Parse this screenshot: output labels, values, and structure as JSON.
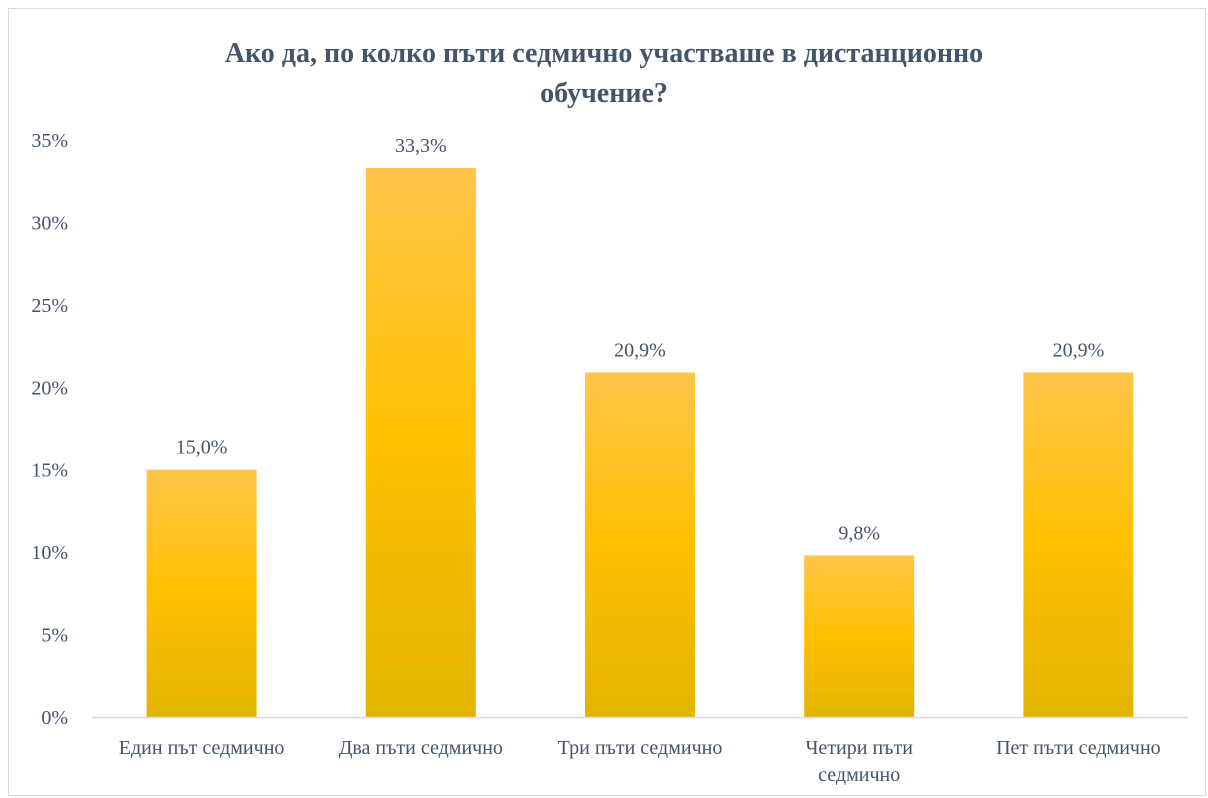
{
  "chart_data": {
    "type": "bar",
    "title_lines": [
      "Ако да, по колко пъти седмично участваше в дистанционно",
      "обучение?"
    ],
    "categories": [
      [
        "Един път седмично"
      ],
      [
        "Два пъти седмично"
      ],
      [
        "Три пъти седмично"
      ],
      [
        "Четири пъти",
        "седмично"
      ],
      [
        "Пет пъти седмично"
      ]
    ],
    "values": [
      15.0,
      33.3,
      20.9,
      9.8,
      20.9
    ],
    "data_labels": [
      "15,0%",
      "33,3%",
      "20,9%",
      "9,8%",
      "20,9%"
    ],
    "y_ticks": [
      0,
      5,
      10,
      15,
      20,
      25,
      30,
      35
    ],
    "y_tick_labels": [
      "0%",
      "5%",
      "10%",
      "15%",
      "20%",
      "25%",
      "30%",
      "35%"
    ],
    "ylim": [
      0,
      35
    ],
    "xlabel": "",
    "ylabel": "",
    "grid": false,
    "legend": "none",
    "colors": {
      "bar_top": "#ffc54a",
      "bar_mid": "#ffc000",
      "bar_bottom": "#e2b400",
      "text": "#44546a",
      "axis": "#d9d9d9"
    }
  }
}
